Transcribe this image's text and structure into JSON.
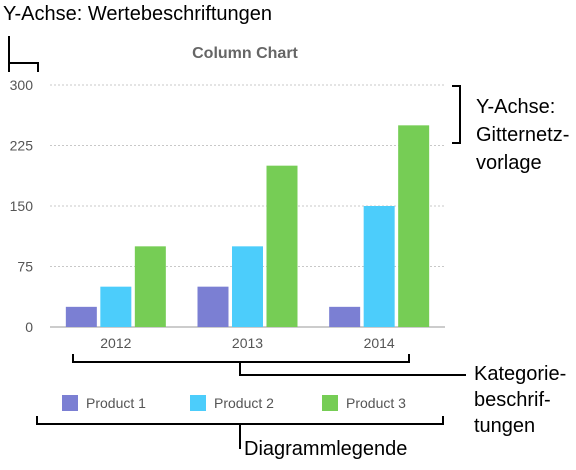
{
  "annotations": {
    "y_value_labels": "Y-Achse: Wertebeschriftungen",
    "y_gridlines_line1": "Y-Achse:",
    "y_gridlines_line2": "Gitternetz-",
    "y_gridlines_line3": "vorlage",
    "category_labels_line1": "Kategorie-",
    "category_labels_line2": "beschrif-",
    "category_labels_line3": "tungen",
    "legend_label": "Diagrammlegende"
  },
  "colors": {
    "product1": "#7b7fd3",
    "product2": "#4ccdfb",
    "product3": "#76cd55",
    "grid": "#c8c8c8",
    "axis": "#999999"
  },
  "chart_data": {
    "type": "bar",
    "title": "Column Chart",
    "categories": [
      "2012",
      "2013",
      "2014"
    ],
    "series": [
      {
        "name": "Product 1",
        "values": [
          25,
          50,
          25
        ]
      },
      {
        "name": "Product 2",
        "values": [
          50,
          100,
          150
        ]
      },
      {
        "name": "Product 3",
        "values": [
          100,
          200,
          250
        ]
      }
    ],
    "ylim": [
      0,
      300
    ],
    "yticks": [
      0,
      75,
      150,
      225,
      300
    ],
    "grid": true,
    "legend_position": "bottom"
  }
}
